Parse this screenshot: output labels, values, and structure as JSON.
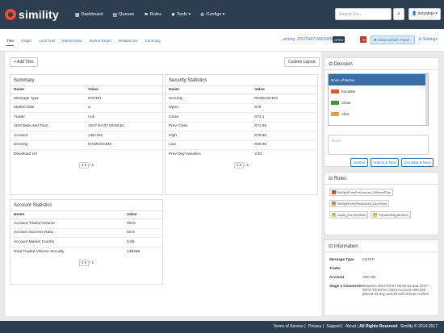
{
  "app": {
    "name": "simility"
  },
  "nav": [
    {
      "icon": "dashboard-icon",
      "glyph": "▦",
      "label": "Dashboard"
    },
    {
      "icon": "queue-icon",
      "glyph": "▤",
      "label": "Queues"
    },
    {
      "icon": "rules-icon",
      "glyph": "⚑",
      "label": "Rules"
    },
    {
      "icon": "tools-icon",
      "glyph": "✸",
      "label": "Tools ▾"
    },
    {
      "icon": "configs-icon",
      "glyph": "⚙",
      "label": "Configs ▾"
    }
  ],
  "search": {
    "placeholder": "Search For..."
  },
  "user": {
    "label": "suryateja ▾"
  },
  "tabs": [
    "Tiles",
    "Graph",
    "Audit Trail",
    "Market Data",
    "Market Graph",
    "Related List",
    "Summary"
  ],
  "activity": {
    "label": "activity: 20170407-000108580203",
    "status": "OPEN",
    "count": "79"
  },
  "close_panel": "✖ Close Details Panel",
  "settings": "⚙ Settings",
  "add_tiles": "+ Add Tiles",
  "custom_layout": "Custom Layout",
  "summary": {
    "title": "Summary",
    "headers": [
      "Name",
      "Value"
    ],
    "rows": [
      [
        "Message Type",
        "ENTER"
      ],
      [
        "Market Side",
        "a"
      ],
      [
        "Trader",
        "null"
      ],
      [
        "Alert Date And Time",
        "2017-04-07 09:58:51"
      ],
      [
        "Account",
        "ABC196"
      ],
      [
        "Security",
        "RAMCOCEM"
      ],
      [
        "Download Url",
        ""
      ]
    ],
    "page": "1",
    "total": "/ 1"
  },
  "security_stats": {
    "title": "Security Statistics",
    "headers": [
      "Name",
      "Value"
    ],
    "rows": [
      [
        "Security",
        "RAMCOCEM"
      ],
      [
        "Open",
        "676"
      ],
      [
        "Close",
        "674.1"
      ],
      [
        "Prev Close",
        "671.95"
      ],
      [
        "High",
        "679.85"
      ],
      [
        "Low",
        "660.95"
      ],
      [
        "Prev Day Variation",
        "2.81"
      ]
    ],
    "page": "1",
    "total": "/ 1"
  },
  "account_stats": {
    "title": "Account Statistics",
    "headers": [
      "Name",
      "Value"
    ],
    "rows": [
      [
        "Account Traded Volume",
        "8976"
      ],
      [
        "Account Success Ratio",
        "58.6"
      ],
      [
        "Account Market Contrib",
        "6.05"
      ],
      [
        "Total Traded Volume Security",
        "148398"
      ]
    ],
    "page": "1",
    "total": "/ 1"
  },
  "decision": {
    "title": "Decision",
    "options": [
      {
        "label": "None of Below",
        "color": ""
      },
      {
        "label": "Escalate",
        "color": "#e05a2b"
      },
      {
        "label": "Close",
        "color": "#3c9a3c"
      },
      {
        "label": "Alert",
        "color": "#e8a040"
      }
    ],
    "notes_placeholder": "Notes",
    "buttons": [
      "Submit",
      "Submit & Next",
      "Escalate & Next"
    ]
  },
  "rules": {
    "title": "Rules",
    "items": [
      [
        {
          "num": "100",
          "color": "#e05a2b",
          "label": "MultipleEnterPerAccount_DifferentSide"
        }
      ],
      [
        {
          "num": "50",
          "color": "#e8a040",
          "label": "MultipleEnterPerAccount_SameSide"
        }
      ],
      [
        {
          "num": "10",
          "color": "#f0d050",
          "label": "Liquid_SuccessRatio"
        },
        {
          "num": "10",
          "color": "#f0d050",
          "label": "PreviousDayVariation"
        }
      ]
    ]
  },
  "information": {
    "title": "Information",
    "rows": [
      {
        "label": "Message Type",
        "value": "ENTER"
      },
      {
        "label": "Trader",
        "value": ""
      },
      {
        "label": "Account",
        "value": "ABC196"
      },
      {
        "label": "Stage 1 Comments",
        "value": "Between 2017-04-07 09:52:51 and 2017-04-07 09:58:51 Client Account ABC196 placed 34 buy and 28 sell of Enter orders"
      }
    ]
  },
  "footer": {
    "links": [
      "Terms of Service",
      "Privacy",
      "Support",
      "About"
    ],
    "copyright": "All Rights Reserved",
    "brand": "Simility © 2014-2017"
  }
}
